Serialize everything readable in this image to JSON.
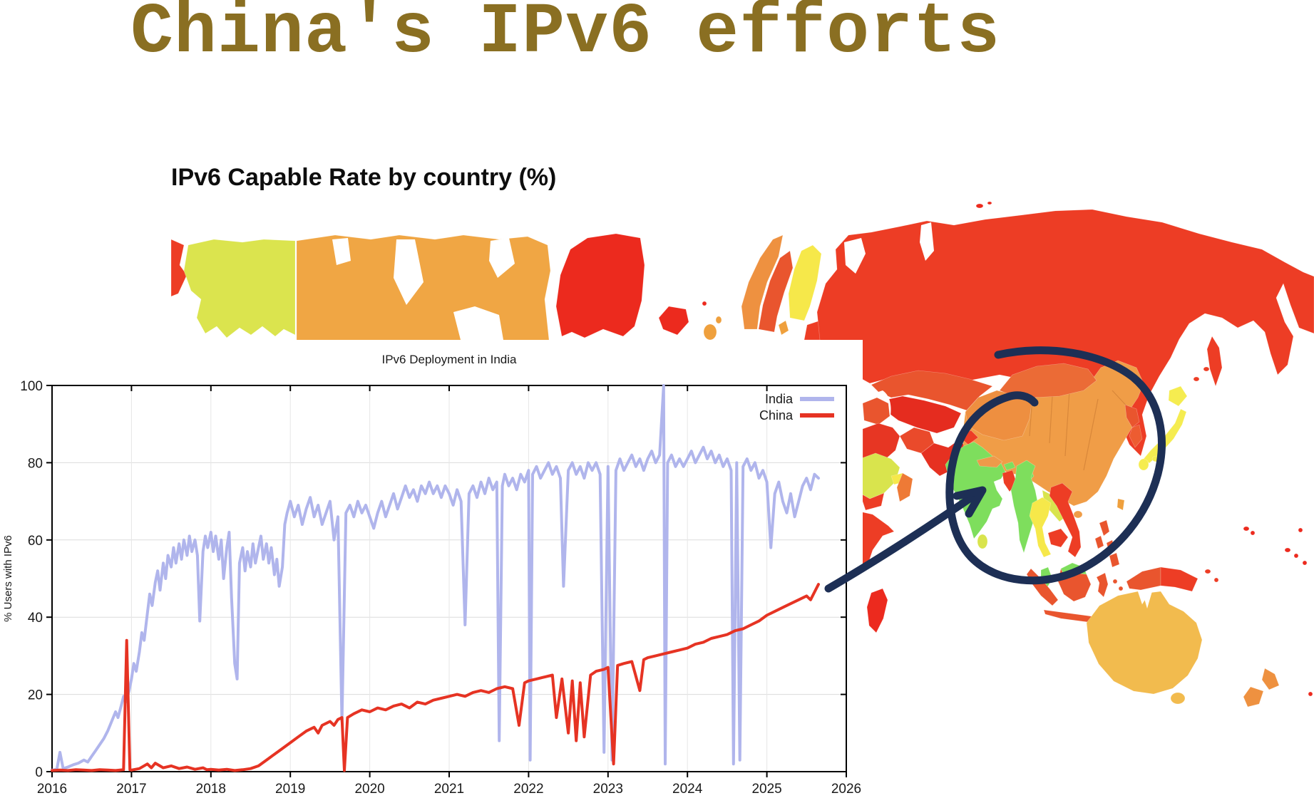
{
  "slide": {
    "title": "China's IPv6 efforts",
    "title_color": "#8a6f22"
  },
  "map": {
    "title": "IPv6 Capable Rate by country (%)",
    "description": "World choropleth map of IPv6 capable rate; red = low, orange/yellow = mid, green = high",
    "annotation": {
      "highlight_region": "China",
      "shapes": [
        "hand-drawn circle around China",
        "arrow from China chart line to China on map"
      ],
      "color": "#1d2f55"
    },
    "regions": {
      "chukotka": {
        "label": "Russia (east edge)",
        "color": "#ed3d25"
      },
      "alaska": {
        "label": "Alaska (US)",
        "color": "#dbe44e"
      },
      "canada": {
        "label": "Canada",
        "color": "#f0a644"
      },
      "greenland": {
        "label": "Greenland",
        "color": "#ec2a1e"
      },
      "iceland": {
        "label": "Iceland",
        "color": "#ec2a1e"
      },
      "uk": {
        "label": "United Kingdom",
        "color": "#efa03d"
      },
      "norway": {
        "label": "Norway",
        "color": "#ee9140"
      },
      "sweden": {
        "label": "Sweden",
        "color": "#e9552e"
      },
      "finland": {
        "label": "Finland",
        "color": "#f6e84a"
      },
      "denmark": {
        "label": "Denmark",
        "color": "#efa03d"
      },
      "baltics": {
        "label": "Baltic states",
        "color": "#ed3d25"
      },
      "russia": {
        "label": "Russia",
        "color": "#ed3d25"
      },
      "svalbard": {
        "label": "Svalbard",
        "color": "#ec2a1e"
      },
      "kazakhstan": {
        "label": "Kazakhstan",
        "color": "#e9552e"
      },
      "central-asia": {
        "label": "Central Asia",
        "color": "#e52c1f"
      },
      "iran": {
        "label": "Iran",
        "color": "#e73623"
      },
      "iraq-syria": {
        "label": "Iraq / Syria",
        "color": "#e9552e"
      },
      "saudi-arabia": {
        "label": "Saudi Arabia",
        "color": "#d9e44d"
      },
      "uae-qatar": {
        "label": "UAE / Qatar",
        "color": "#f6e84a"
      },
      "oman": {
        "label": "Oman",
        "color": "#ee7a36"
      },
      "yemen": {
        "label": "Yemen",
        "color": "#ed3d25"
      },
      "horn-of-africa": {
        "label": "Horn of Africa",
        "color": "#ed3d25"
      },
      "madagascar": {
        "label": "Madagascar",
        "color": "#ec2a1e"
      },
      "afghanistan": {
        "label": "Afghanistan",
        "color": "#ea4a2b"
      },
      "pakistan": {
        "label": "Pakistan",
        "color": "#e63121"
      },
      "kashmir": {
        "label": "Kashmir",
        "color": "#ed3d25"
      },
      "india": {
        "label": "India",
        "color": "#7ede5d"
      },
      "sri-lanka": {
        "label": "Sri Lanka",
        "color": "#d9e44d"
      },
      "nepal": {
        "label": "Nepal",
        "color": "#ee9a4a"
      },
      "bhutan": {
        "label": "Bhutan",
        "color": "#7ede5d"
      },
      "bangladesh": {
        "label": "Bangladesh",
        "color": "#ed3d25"
      },
      "myanmar": {
        "label": "Myanmar",
        "color": "#7ede5d"
      },
      "thailand": {
        "label": "Thailand",
        "color": "#f6e84a"
      },
      "laos": {
        "label": "Laos",
        "color": "#d9e44d"
      },
      "cambodia": {
        "label": "Cambodia",
        "color": "#ed3d25"
      },
      "vietnam": {
        "label": "Vietnam",
        "color": "#ed3d25"
      },
      "china": {
        "label": "China",
        "color": "#f09d47"
      },
      "xinjiang": {
        "label": "China (western provinces)",
        "color": "#ee8f40"
      },
      "mongolia": {
        "label": "Mongolia",
        "color": "#eb6b36"
      },
      "north-korea": {
        "label": "North Korea",
        "color": "#e9552e"
      },
      "south-korea": {
        "label": "South Korea",
        "color": "#ed5c31"
      },
      "japan": {
        "label": "Japan",
        "color": "#f5ec50"
      },
      "sakhalin": {
        "label": "Sakhalin",
        "color": "#ed3d25"
      },
      "taiwan": {
        "label": "Taiwan",
        "color": "#efa03d"
      },
      "philippines": {
        "label": "Philippines",
        "color": "#e9552e"
      },
      "malaysia": {
        "label": "Malaysia",
        "color": "#7ede5d"
      },
      "indonesia": {
        "label": "Indonesia",
        "color": "#e9552e"
      },
      "papua-new-guinea": {
        "label": "Papua New Guinea",
        "color": "#ed3d25"
      },
      "australia": {
        "label": "Australia",
        "color": "#f2bb4e"
      },
      "new-zealand": {
        "label": "New Zealand",
        "color": "#ee9140"
      },
      "pacific-islands": {
        "label": "Pacific islands",
        "color": "#ec2a1e"
      }
    }
  },
  "chart_data": {
    "type": "line",
    "title": "IPv6 Deployment in India",
    "ylabel": "% Users with IPv6",
    "xlabel": "",
    "xlim": [
      2016,
      2026
    ],
    "ylim": [
      0,
      100
    ],
    "x_ticks": [
      2016,
      2017,
      2018,
      2019,
      2020,
      2021,
      2022,
      2023,
      2024,
      2025,
      2026
    ],
    "y_ticks": [
      0,
      20,
      40,
      60,
      80,
      100
    ],
    "grid": true,
    "legend_position": "top-right",
    "series": [
      {
        "name": "India",
        "color": "#b0b5ec",
        "x": [
          2016.0,
          2016.06,
          2016.1,
          2016.14,
          2016.2,
          2016.27,
          2016.33,
          2016.4,
          2016.45,
          2016.5,
          2016.55,
          2016.6,
          2016.65,
          2016.7,
          2016.75,
          2016.8,
          2016.83,
          2016.87,
          2016.9,
          2016.93,
          2016.97,
          2017.0,
          2017.03,
          2017.06,
          2017.1,
          2017.13,
          2017.16,
          2017.2,
          2017.23,
          2017.26,
          2017.3,
          2017.33,
          2017.36,
          2017.4,
          2017.43,
          2017.46,
          2017.5,
          2017.53,
          2017.56,
          2017.6,
          2017.63,
          2017.66,
          2017.7,
          2017.73,
          2017.76,
          2017.8,
          2017.83,
          2017.86,
          2017.9,
          2017.93,
          2017.96,
          2018.0,
          2018.03,
          2018.06,
          2018.1,
          2018.13,
          2018.16,
          2018.2,
          2018.23,
          2018.26,
          2018.3,
          2018.33,
          2018.36,
          2018.4,
          2018.43,
          2018.46,
          2018.5,
          2018.53,
          2018.56,
          2018.6,
          2018.63,
          2018.66,
          2018.7,
          2018.73,
          2018.76,
          2018.8,
          2018.83,
          2018.86,
          2018.9,
          2018.93,
          2018.96,
          2019.0,
          2019.05,
          2019.1,
          2019.15,
          2019.2,
          2019.25,
          2019.3,
          2019.35,
          2019.4,
          2019.45,
          2019.5,
          2019.55,
          2019.6,
          2019.65,
          2019.7,
          2019.75,
          2019.8,
          2019.85,
          2019.9,
          2019.95,
          2020.0,
          2020.05,
          2020.1,
          2020.15,
          2020.2,
          2020.25,
          2020.3,
          2020.35,
          2020.4,
          2020.45,
          2020.5,
          2020.55,
          2020.6,
          2020.65,
          2020.7,
          2020.75,
          2020.8,
          2020.85,
          2020.9,
          2020.95,
          2021.0,
          2021.05,
          2021.1,
          2021.15,
          2021.2,
          2021.25,
          2021.3,
          2021.35,
          2021.4,
          2021.45,
          2021.5,
          2021.55,
          2021.6,
          2021.63,
          2021.67,
          2021.7,
          2021.75,
          2021.8,
          2021.85,
          2021.9,
          2021.95,
          2022.0,
          2022.02,
          2022.05,
          2022.1,
          2022.15,
          2022.2,
          2022.25,
          2022.3,
          2022.35,
          2022.4,
          2022.44,
          2022.5,
          2022.55,
          2022.6,
          2022.65,
          2022.7,
          2022.75,
          2022.8,
          2022.85,
          2022.9,
          2022.95,
          2023.0,
          2023.05,
          2023.1,
          2023.15,
          2023.2,
          2023.25,
          2023.3,
          2023.35,
          2023.4,
          2023.45,
          2023.5,
          2023.55,
          2023.6,
          2023.65,
          2023.7,
          2023.72,
          2023.75,
          2023.8,
          2023.85,
          2023.9,
          2023.95,
          2024.0,
          2024.05,
          2024.1,
          2024.15,
          2024.2,
          2024.25,
          2024.3,
          2024.35,
          2024.4,
          2024.45,
          2024.5,
          2024.55,
          2024.58,
          2024.62,
          2024.66,
          2024.7,
          2024.75,
          2024.8,
          2024.85,
          2024.9,
          2024.95,
          2025.0,
          2025.05,
          2025.1,
          2025.15,
          2025.2,
          2025.25,
          2025.3,
          2025.35,
          2025.4,
          2025.45,
          2025.5,
          2025.55,
          2025.6,
          2025.65
        ],
        "y": [
          0.4,
          0.6,
          5,
          0.8,
          1.2,
          1.8,
          2.2,
          3,
          2.5,
          4,
          5.5,
          7,
          8.5,
          10.5,
          13,
          15.5,
          14,
          17,
          19.5,
          18,
          21,
          24,
          28,
          26,
          31,
          36,
          34,
          41,
          46,
          43,
          49,
          52,
          47,
          54,
          50,
          56,
          53,
          58,
          54,
          59,
          55,
          60,
          56,
          61,
          57,
          60,
          56,
          39,
          57,
          61,
          58,
          62,
          57,
          61,
          55,
          60,
          50,
          58,
          62,
          45,
          28,
          24,
          54,
          58,
          52,
          57,
          53,
          59,
          54,
          58,
          61,
          55,
          59,
          54,
          58,
          51,
          55,
          48,
          53,
          64,
          67,
          70,
          66,
          69,
          64,
          68,
          71,
          66,
          69,
          64,
          67,
          70,
          60,
          66,
          13,
          67,
          69,
          66,
          70,
          67,
          69,
          66,
          63,
          67,
          70,
          66,
          69,
          72,
          68,
          71,
          74,
          71,
          73,
          70,
          74,
          72,
          75,
          72,
          74,
          71,
          74,
          72,
          69,
          73,
          70,
          38,
          72,
          74,
          71,
          75,
          72,
          76,
          73,
          75,
          8,
          74,
          77,
          74,
          76,
          73,
          77,
          75,
          78,
          3,
          77,
          79,
          76,
          78,
          80,
          77,
          79,
          76,
          48,
          78,
          80,
          77,
          79,
          76,
          80,
          78,
          80,
          77,
          5,
          79,
          3,
          78,
          81,
          78,
          80,
          82,
          79,
          81,
          78,
          81,
          83,
          80,
          82,
          100,
          2,
          80,
          82,
          79,
          81,
          79,
          81,
          83,
          80,
          82,
          84,
          81,
          83,
          80,
          82,
          79,
          81,
          78,
          2,
          80,
          3,
          79,
          81,
          78,
          80,
          76,
          78,
          75,
          58,
          72,
          75,
          70,
          67,
          72,
          66,
          70,
          74,
          76,
          73,
          77,
          76
        ]
      },
      {
        "name": "China",
        "color": "#e63323",
        "x": [
          2016.0,
          2016.1,
          2016.2,
          2016.3,
          2016.4,
          2016.5,
          2016.6,
          2016.7,
          2016.8,
          2016.9,
          2016.94,
          2016.98,
          2017.0,
          2017.1,
          2017.2,
          2017.25,
          2017.3,
          2017.4,
          2017.5,
          2017.6,
          2017.7,
          2017.8,
          2017.9,
          2017.95,
          2018.0,
          2018.1,
          2018.2,
          2018.3,
          2018.4,
          2018.5,
          2018.6,
          2018.7,
          2018.8,
          2018.9,
          2019.0,
          2019.1,
          2019.2,
          2019.3,
          2019.35,
          2019.4,
          2019.5,
          2019.55,
          2019.6,
          2019.65,
          2019.68,
          2019.72,
          2019.8,
          2019.9,
          2020.0,
          2020.1,
          2020.2,
          2020.3,
          2020.4,
          2020.5,
          2020.6,
          2020.7,
          2020.8,
          2020.9,
          2021.0,
          2021.1,
          2021.2,
          2021.3,
          2021.4,
          2021.5,
          2021.6,
          2021.7,
          2021.8,
          2021.88,
          2021.95,
          2022.0,
          2022.1,
          2022.2,
          2022.3,
          2022.35,
          2022.42,
          2022.5,
          2022.55,
          2022.6,
          2022.65,
          2022.7,
          2022.78,
          2022.85,
          2022.95,
          2023.0,
          2023.07,
          2023.12,
          2023.2,
          2023.3,
          2023.4,
          2023.45,
          2023.5,
          2023.6,
          2023.7,
          2023.8,
          2023.9,
          2024.0,
          2024.1,
          2024.2,
          2024.3,
          2024.4,
          2024.5,
          2024.6,
          2024.7,
          2024.8,
          2024.9,
          2025.0,
          2025.1,
          2025.2,
          2025.3,
          2025.4,
          2025.5,
          2025.55,
          2025.6,
          2025.65
        ],
        "y": [
          0.3,
          0.4,
          0.3,
          0.5,
          0.4,
          0.3,
          0.5,
          0.4,
          0.3,
          0.5,
          34,
          0.5,
          0.4,
          0.8,
          2,
          1,
          2.2,
          1,
          1.5,
          0.8,
          1.2,
          0.6,
          1,
          0.5,
          0.6,
          0.4,
          0.6,
          0.3,
          0.5,
          0.8,
          1.5,
          3,
          4.5,
          6,
          7.5,
          9,
          10.5,
          11.5,
          10,
          12,
          13,
          12,
          13.5,
          14,
          0.3,
          14,
          15,
          16,
          15.5,
          16.5,
          16,
          17,
          17.5,
          16.5,
          18,
          17.5,
          18.5,
          19,
          19.5,
          20,
          19.5,
          20.5,
          21,
          20.5,
          21.5,
          22,
          21.5,
          12,
          23,
          23.5,
          24,
          24.5,
          25,
          14,
          24,
          10,
          23.5,
          8,
          23,
          9,
          25,
          26,
          26.5,
          27,
          2,
          27.5,
          28,
          28.5,
          21,
          29,
          29.5,
          30,
          30.5,
          31,
          31.5,
          32,
          33,
          33.5,
          34.5,
          35,
          35.5,
          36.5,
          37,
          38,
          39,
          40.5,
          41.5,
          42.5,
          43.5,
          44.5,
          45.5,
          44.5,
          46.5,
          48.5
        ]
      }
    ]
  }
}
